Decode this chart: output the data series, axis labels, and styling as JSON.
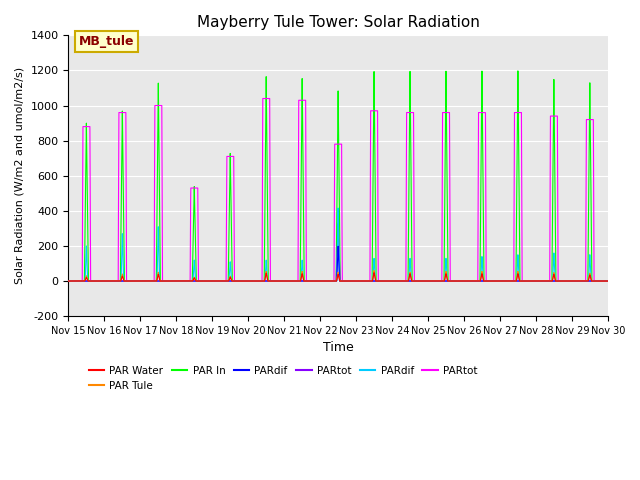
{
  "title": "Mayberry Tule Tower: Solar Radiation",
  "xlabel": "Time",
  "ylabel": "Solar Radiation (W/m2 and umol/m2/s)",
  "ylim": [
    -200,
    1400
  ],
  "yticks": [
    -200,
    0,
    200,
    400,
    600,
    800,
    1000,
    1200,
    1400
  ],
  "xlim_days": [
    15,
    30
  ],
  "xtick_labels": [
    "Nov 15",
    "Nov 16",
    "Nov 17",
    "Nov 18",
    "Nov 19",
    "Nov 20",
    "Nov 21",
    "Nov 22",
    "Nov 23",
    "Nov 24",
    "Nov 25",
    "Nov 26",
    "Nov 27",
    "Nov 28",
    "Nov 29",
    "Nov 30"
  ],
  "station_label": "MB_tule",
  "background_color": "#e8e8e8",
  "fig_background": "#ffffff",
  "day_peaks": {
    "green": [
      900,
      970,
      1130,
      540,
      730,
      1170,
      1160,
      1090,
      1200,
      1200,
      1200,
      1200,
      1200,
      1150,
      1130
    ],
    "magenta": [
      880,
      960,
      1000,
      530,
      710,
      1040,
      1030,
      780,
      970,
      960,
      960,
      960,
      960,
      940,
      920
    ],
    "orange": [
      30,
      40,
      50,
      22,
      28,
      55,
      55,
      50,
      60,
      50,
      55,
      55,
      55,
      48,
      45
    ],
    "red": [
      20,
      28,
      38,
      18,
      22,
      45,
      42,
      38,
      48,
      42,
      42,
      42,
      42,
      38,
      35
    ],
    "blue": [
      0,
      0,
      0,
      0,
      0,
      0,
      0,
      200,
      0,
      0,
      0,
      0,
      0,
      0,
      0
    ],
    "purple": [
      0,
      0,
      0,
      0,
      0,
      0,
      0,
      330,
      0,
      0,
      0,
      0,
      0,
      0,
      0
    ],
    "cyan": [
      200,
      270,
      310,
      120,
      110,
      120,
      120,
      420,
      130,
      130,
      130,
      140,
      150,
      160,
      150
    ]
  },
  "legend_colors": [
    "#ff0000",
    "#ff8800",
    "#00ff00",
    "#0000ff",
    "#8800ff",
    "#00ccff",
    "#ff00ff"
  ],
  "legend_labels": [
    "PAR Water",
    "PAR Tule",
    "PAR In",
    "PARdif",
    "PARtot",
    "PARdif",
    "PARtot"
  ]
}
